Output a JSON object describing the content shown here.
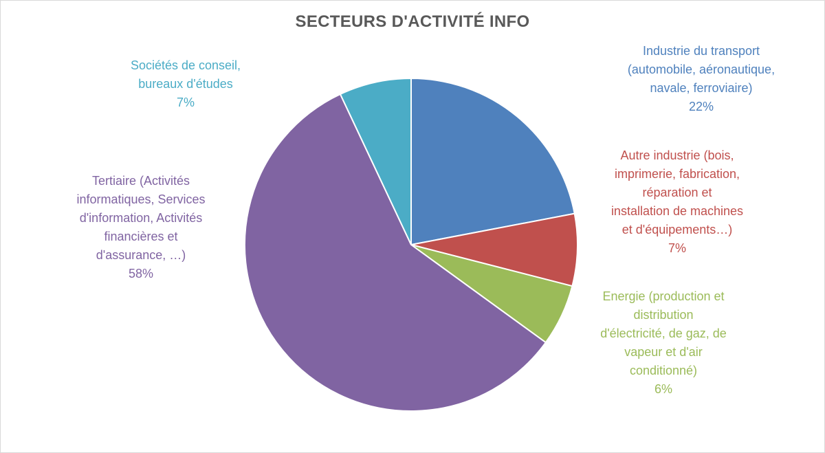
{
  "chart_data": {
    "type": "pie",
    "title": "SECTEURS D'ACTIVITÉ INFO",
    "slices": [
      {
        "label_lines": [
          "Industrie du transport",
          "(automobile, aéronautique,",
          "navale, ferroviaire)"
        ],
        "percent_label": "22%",
        "value": 22,
        "color": "#4F81BD"
      },
      {
        "label_lines": [
          "Autre industrie (bois,",
          "imprimerie, fabrication,",
          "réparation et",
          "installation de machines",
          "et d'équipements…)"
        ],
        "percent_label": "7%",
        "value": 7,
        "color": "#C0504D"
      },
      {
        "label_lines": [
          "Energie (production et",
          "distribution",
          "d'électricité, de gaz, de",
          "vapeur et d'air",
          "conditionné)"
        ],
        "percent_label": "6%",
        "value": 6,
        "color": "#9BBB59"
      },
      {
        "label_lines": [
          "Tertiaire (Activités",
          "informatiques, Services",
          "d'information, Activités",
          "financières et",
          "d'assurance, …)"
        ],
        "percent_label": "58%",
        "value": 58,
        "color": "#8064A2"
      },
      {
        "label_lines": [
          "Sociétés de conseil,",
          "bureaux d'études"
        ],
        "percent_label": "7%",
        "value": 7,
        "color": "#4BACC6"
      }
    ]
  }
}
